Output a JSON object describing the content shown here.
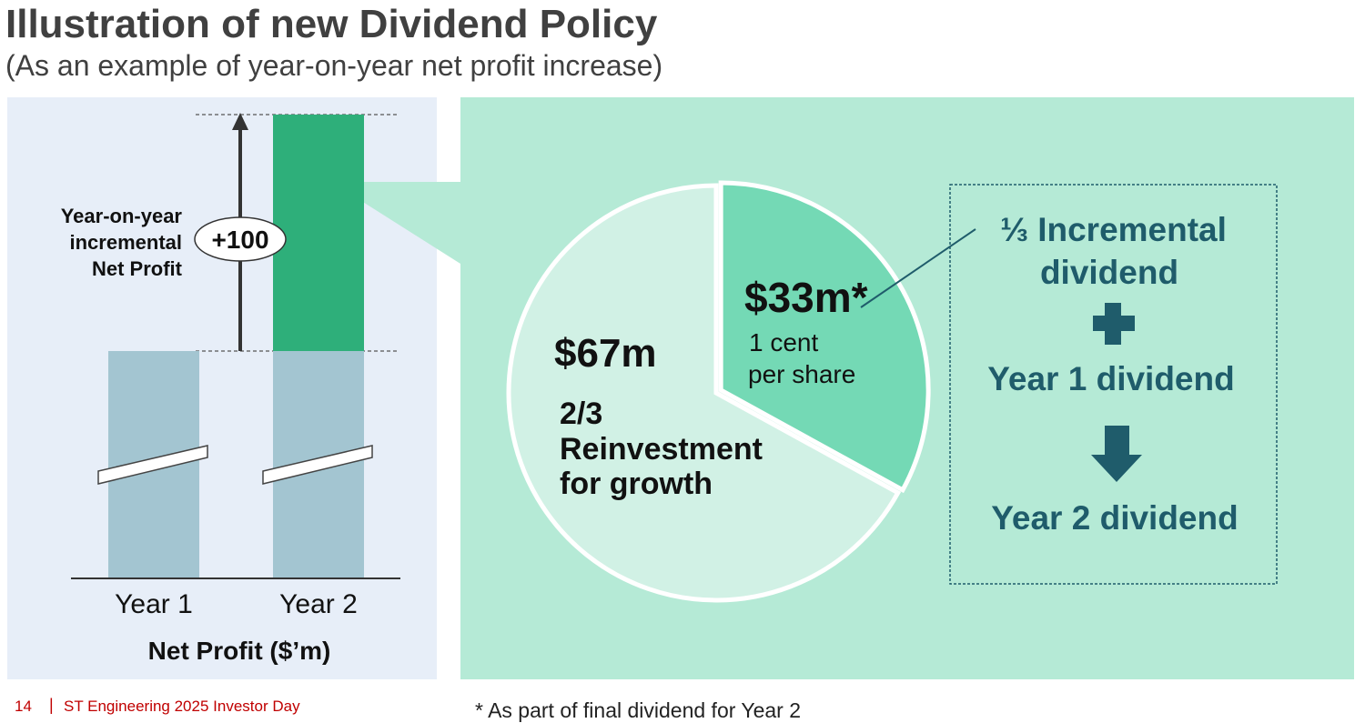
{
  "title": "Illustration of new Dividend Policy",
  "subtitle": "(As an example of year-on-year net profit increase)",
  "left_chart": {
    "yoy_label": [
      "Year-on-year",
      "incremental",
      "Net Profit"
    ],
    "increment_badge": "+100",
    "categories": [
      "Year 1",
      "Year 2"
    ],
    "axis_title": "Net Profit ($’m)",
    "colors": {
      "base_bar": "#a3c5d1",
      "increment_bar": "#2eaf7a"
    }
  },
  "pie": {
    "slices": [
      {
        "value": 33,
        "label": "$33m*",
        "sublabel": [
          "1 cent",
          "per share"
        ],
        "color": "#74d9b5"
      },
      {
        "value": 67,
        "label": "$67m",
        "sublabel": [
          "2/3",
          "Reinvestment",
          "for growth"
        ],
        "color": "#d1f1e5"
      }
    ]
  },
  "formula": {
    "line1": "⅓ Incremental",
    "line2": "dividend",
    "plus_icon": "plus-icon",
    "line3": "Year 1 dividend",
    "arrow_icon": "arrow-down-icon",
    "line4": "Year 2 dividend",
    "color": "#1f5c6b"
  },
  "footer": {
    "page_number": "14",
    "separator": "|",
    "text": "ST Engineering 2025 Investor Day"
  },
  "footnote": "*  As part of final dividend for Year 2"
}
